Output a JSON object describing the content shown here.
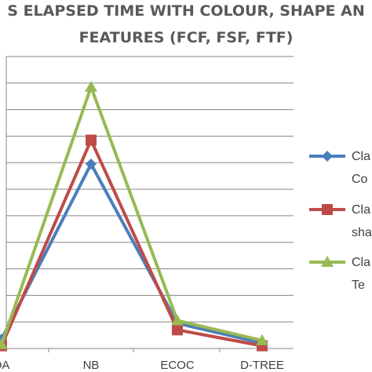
{
  "chart_data": {
    "type": "line",
    "title_lines": [
      "S ELAPSED TIME WITH COLOUR, SHAPE AN",
      "FEATURES  (FCF, FSF, FTF)"
    ],
    "categories": [
      "DA",
      "NB",
      "ECOC",
      "D-TREE"
    ],
    "y_range": [
      0,
      11
    ],
    "grid": true,
    "legend_position": "right",
    "series": [
      {
        "name": "Cla\nCo",
        "color": "#4a7ebb",
        "marker": "diamond",
        "values": [
          0.35,
          6.95,
          0.95,
          0.2
        ]
      },
      {
        "name": "Cla\nsha",
        "color": "#be4b48",
        "marker": "square",
        "values": [
          0.1,
          7.85,
          0.7,
          0.1
        ]
      },
      {
        "name": "Cla\nTe",
        "color": "#98b954",
        "marker": "triangle",
        "values": [
          0.15,
          9.85,
          1.05,
          0.3
        ]
      }
    ]
  }
}
